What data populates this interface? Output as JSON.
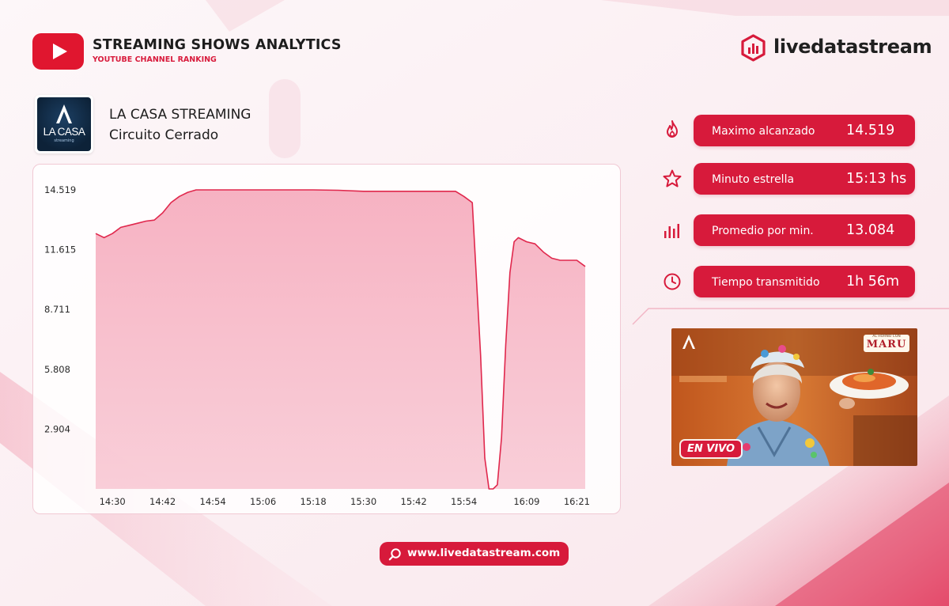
{
  "header": {
    "title": "STREAMING SHOWS ANALYTICS",
    "subtitle": "YOUTUBE CHANNEL RANKING",
    "youtube_icon": "youtube-play-icon",
    "brand": "livedatastream",
    "brand_icon": "hexagon-bars-icon"
  },
  "channel": {
    "name": "LA CASA STREAMING",
    "show": "Circuito Cerrado",
    "logo_text": "LA CASA",
    "logo_small": "streaming"
  },
  "stats": [
    {
      "label": "Maximo alcanzado",
      "value": "14.519",
      "icon": "fire-icon"
    },
    {
      "label": "Minuto estrella",
      "value": "15:13 hs",
      "icon": "star-icon"
    },
    {
      "label": "Promedio por min.",
      "value": "13.084",
      "icon": "bar-chart-icon"
    },
    {
      "label": "Tiempo transmitido",
      "value": "1h 56m",
      "icon": "clock-icon"
    }
  ],
  "thumbnail": {
    "live_label": "EN VIVO",
    "badge_small": "AL HORNO CON",
    "badge_big": "MARU"
  },
  "footer": {
    "url": "www.livedatastream.com",
    "icon": "search-icon"
  },
  "colors": {
    "accent": "#d71a3b",
    "line": "#e0284d",
    "fill": "#f6b9c8"
  },
  "chart_data": {
    "type": "area",
    "x_start": "14:26",
    "x_end": "16:23",
    "yticks": [
      2904,
      5808,
      8711,
      11615,
      14519
    ],
    "ytick_labels": [
      "2.904",
      "5.808",
      "8.711",
      "11.615",
      "14.519"
    ],
    "xticks": [
      "14:30",
      "14:42",
      "14:54",
      "15:06",
      "15:18",
      "15:30",
      "15:42",
      "15:54",
      "16:09",
      "16:21"
    ],
    "ylim": [
      0,
      14519
    ],
    "grid": false,
    "series": [
      {
        "x": [
          "14:26",
          "14:28",
          "14:30",
          "14:32",
          "14:34",
          "14:36",
          "14:38",
          "14:40",
          "14:42",
          "14:44",
          "14:46",
          "14:48",
          "14:50",
          "14:52",
          "14:54",
          "15:00",
          "15:06",
          "15:12",
          "15:13",
          "15:18",
          "15:24",
          "15:30",
          "15:36",
          "15:42",
          "15:48",
          "15:52",
          "15:54",
          "15:56",
          "15:58",
          "15:59",
          "16:00",
          "16:01",
          "16:02",
          "16:03",
          "16:04",
          "16:05",
          "16:06",
          "16:07",
          "16:09",
          "16:11",
          "16:13",
          "16:15",
          "16:17",
          "16:19",
          "16:21",
          "16:23"
        ],
        "y": [
          12400,
          12200,
          12400,
          12700,
          12800,
          12900,
          13000,
          13050,
          13400,
          13900,
          14200,
          14400,
          14519,
          14519,
          14519,
          14519,
          14519,
          14519,
          14519,
          14519,
          14500,
          14450,
          14450,
          14450,
          14450,
          14450,
          14200,
          13900,
          6500,
          1500,
          0,
          0,
          200,
          2500,
          7000,
          10500,
          12000,
          12200,
          12000,
          11900,
          11500,
          11200,
          11100,
          11100,
          11100,
          10800
        ]
      }
    ]
  }
}
